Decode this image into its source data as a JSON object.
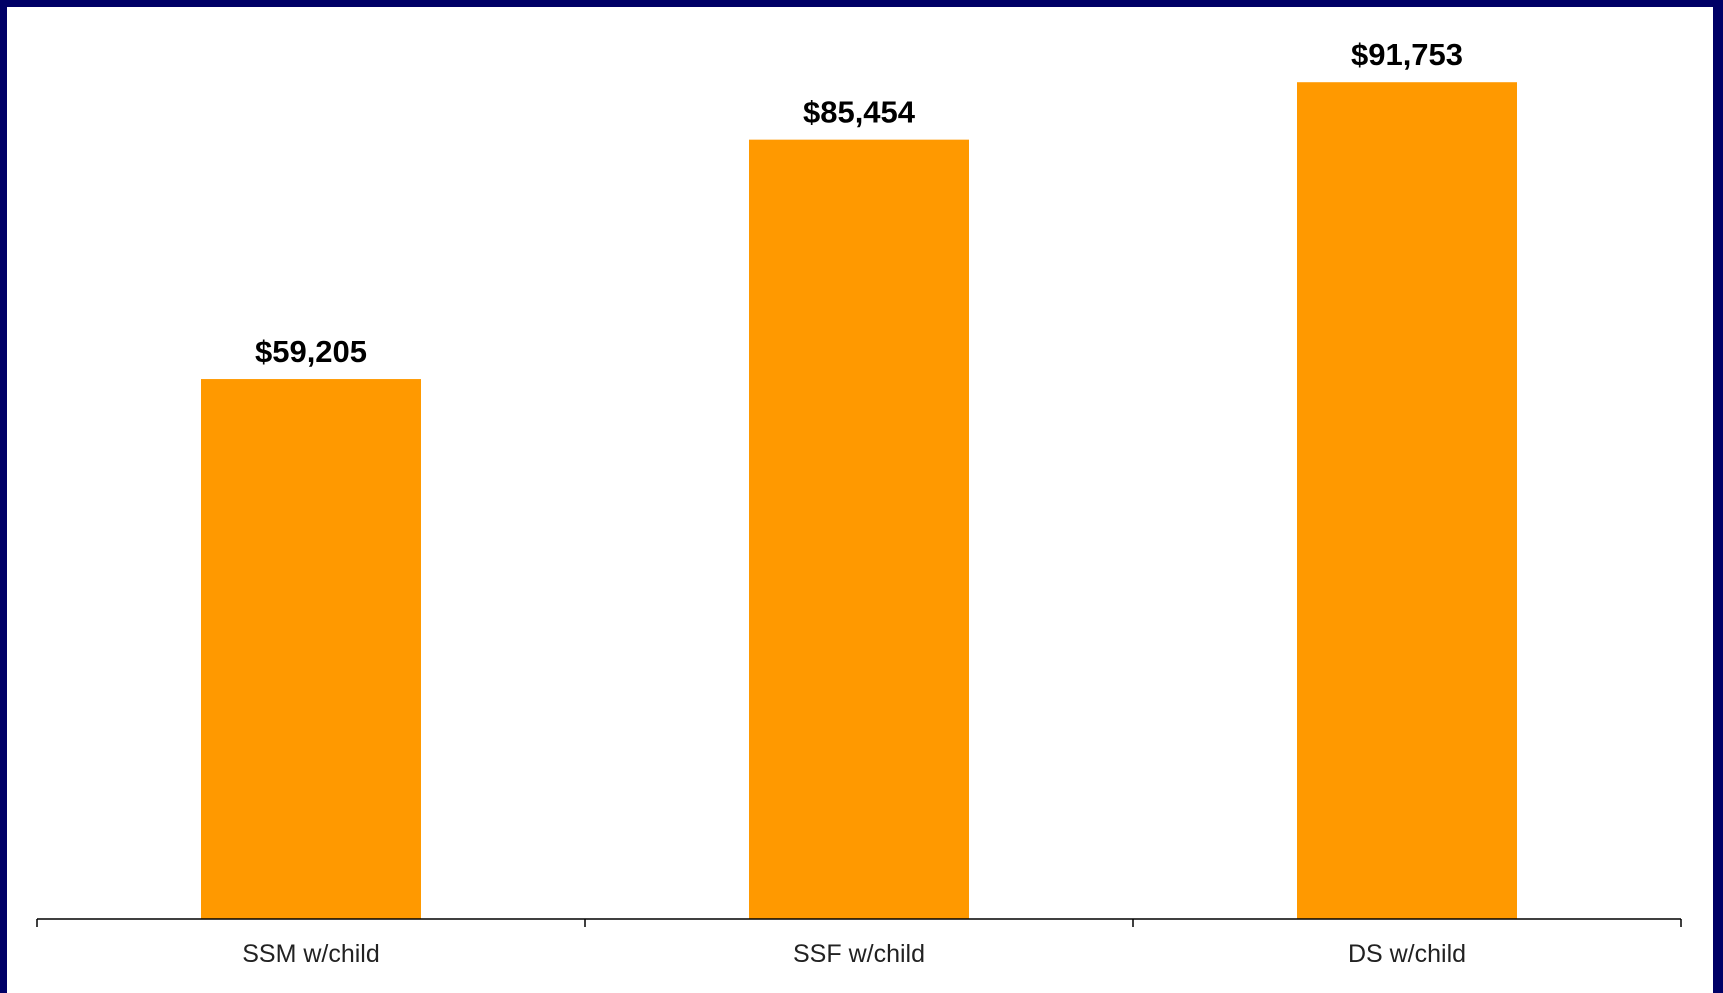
{
  "chart_data": {
    "type": "bar",
    "categories": [
      "SSM w/child",
      "SSF w/child",
      "DS w/child"
    ],
    "values": [
      59205,
      85454,
      91753
    ],
    "value_labels": [
      "$59,205",
      "$85,454",
      "$91,753"
    ],
    "title": "",
    "xlabel": "",
    "ylabel": "",
    "ylim": [
      0,
      100000
    ],
    "grid": false,
    "legend": "none",
    "colors": {
      "bar": "#FF9900",
      "axis": "#000000",
      "frame": "#000066",
      "background": "#FFFFFF"
    }
  }
}
